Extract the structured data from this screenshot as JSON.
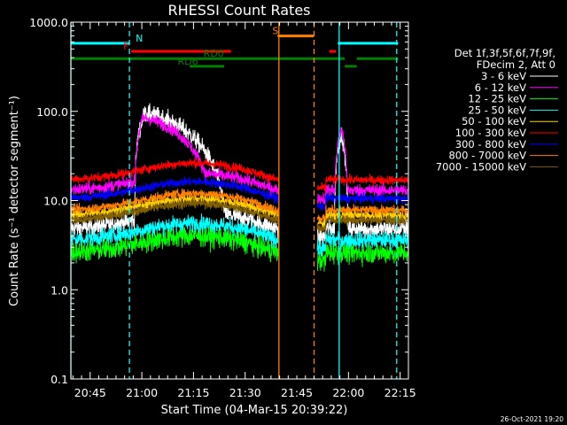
{
  "chart_data": {
    "type": "line",
    "title": "RHESSI Count Rates",
    "xlabel": "Start Time (04-Mar-15 20:39:22)",
    "ylabel": "Count Rate (s⁻¹ detector segment⁻¹)",
    "ylim": [
      0.1,
      1000.0
    ],
    "yscale": "log",
    "xlim_minutes": [
      0,
      98
    ],
    "x_ticks": [
      {
        "label": "20:45",
        "minute": 5.6
      },
      {
        "label": "21:00",
        "minute": 20.6
      },
      {
        "label": "21:15",
        "minute": 35.6
      },
      {
        "label": "21:30",
        "minute": 50.6
      },
      {
        "label": "21:45",
        "minute": 65.6
      },
      {
        "label": "22:00",
        "minute": 80.6
      },
      {
        "label": "22:15",
        "minute": 95.6
      }
    ],
    "y_ticks": [
      {
        "label": "0.1",
        "value": 0.1
      },
      {
        "label": "1.0",
        "value": 1.0
      },
      {
        "label": "10.0",
        "value": 10.0
      },
      {
        "label": "100.0",
        "value": 100.0
      },
      {
        "label": "1000.0",
        "value": 1000.0
      }
    ],
    "legend_header": [
      "Det 1f,3f,5f,6f,7f,9f,",
      "FDecim 2, Att 0"
    ],
    "series": [
      {
        "name": "3 - 6 keV",
        "color": "#ffffff",
        "base": 4.8,
        "noise": 0.1,
        "flare": {
          "peak": 95,
          "start": 18.5,
          "rise": 21.5,
          "decay": 45.0
        },
        "flare2": {
          "peak": 55,
          "start": 76.5,
          "rise": 78.5,
          "decay": 80.5
        }
      },
      {
        "name": "6 - 12 keV",
        "color": "#ff00ff",
        "base": 13.0,
        "noise": 0.07,
        "flare": {
          "peak": 85,
          "start": 18.5,
          "rise": 21.0,
          "decay": 42.0
        },
        "flare2": {
          "peak": 62,
          "start": 76.5,
          "rise": 78.5,
          "decay": 80.5
        }
      },
      {
        "name": "12 - 25 keV",
        "color": "#00ff00",
        "base": 2.6,
        "noise": 0.12
      },
      {
        "name": "25 - 50 keV",
        "color": "#00ffff",
        "base": 3.6,
        "noise": 0.09
      },
      {
        "name": "50 - 100 keV",
        "color": "#ffd000",
        "base": 6.8,
        "noise": 0.06
      },
      {
        "name": "100 - 300 keV",
        "color": "#ff0000",
        "base": 17.0,
        "noise": 0.05
      },
      {
        "name": "300 - 800 keV",
        "color": "#0000ff",
        "base": 10.5,
        "noise": 0.05
      },
      {
        "name": "800 - 7000 keV",
        "color": "#ff8000",
        "base": 7.8,
        "noise": 0.05
      },
      {
        "name": "7000 - 15000 keV",
        "color": "#806000",
        "base": 6.0,
        "noise": 0.05
      }
    ],
    "flags": [
      {
        "label": "N",
        "color": "#00ffff",
        "value": 580,
        "segments": [
          [
            0,
            17
          ],
          [
            77.5,
            95
          ]
        ],
        "label_minute": 18.8
      },
      {
        "label": "F",
        "color": "#ff0000",
        "value": 470,
        "segments": [
          [
            17.5,
            46.5
          ],
          [
            75,
            77
          ]
        ],
        "label_minute": 15.2
      },
      {
        "label": "RD0",
        "color": "#008000",
        "value": 390,
        "segments": [
          [
            0,
            79.5
          ],
          [
            83,
            95
          ]
        ],
        "label_minute": 38.5
      },
      {
        "label": "RD6",
        "color": "#008000",
        "value": 320,
        "segments": [
          [
            34.5,
            44.5
          ],
          [
            79.5,
            83
          ]
        ],
        "label_minute": 31.0
      },
      {
        "label": "S",
        "color": "#ff8000",
        "value": 700,
        "segments": [
          [
            60,
            70.5
          ]
        ],
        "label_minute": 58.5
      }
    ],
    "vlines": [
      {
        "minute": 0,
        "color": "#00ffff",
        "style": "solid"
      },
      {
        "minute": 17,
        "color": "#00ffff",
        "style": "dashed"
      },
      {
        "minute": 60.4,
        "color": "#ff8000",
        "style": "solid"
      },
      {
        "minute": 70.6,
        "color": "#ff8000",
        "style": "dashed"
      },
      {
        "minute": 77.9,
        "color": "#00ffff",
        "style": "solid"
      },
      {
        "minute": 94.6,
        "color": "#00ffff",
        "style": "dashed"
      }
    ],
    "gaps": [
      [
        60.4,
        71.5
      ]
    ],
    "annotation": "26-Oct-2021 19:20"
  }
}
